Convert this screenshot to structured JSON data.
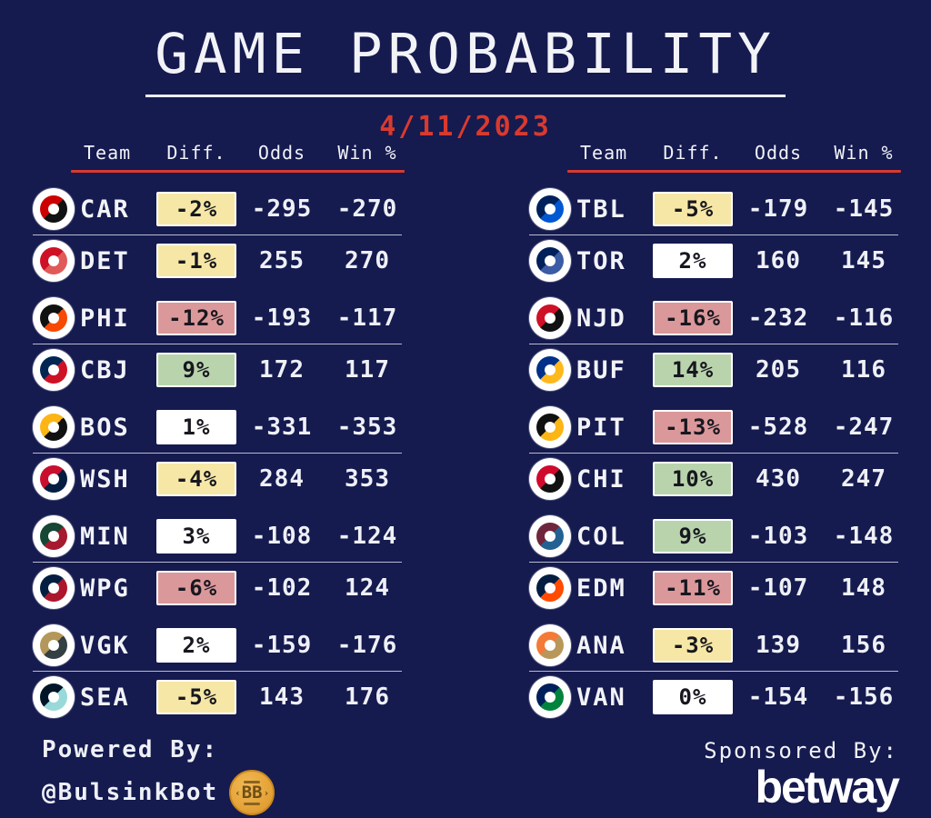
{
  "header": {
    "title": "GAME PROBABILITY",
    "date": "4/11/2023"
  },
  "table_headers": {
    "team": "Team",
    "diff": "Diff.",
    "odds": "Odds",
    "win": "Win %"
  },
  "colors": {
    "background": "#151a4f",
    "accent_red": "#d93a2e",
    "badge_yellow": "#f6e7a6",
    "badge_red": "#db989a",
    "badge_green": "#b9d4ad",
    "badge_white": "#ffffff",
    "text_white": "#f2f3f7"
  },
  "columns": [
    {
      "games": [
        {
          "rows": [
            {
              "abbr": "CAR",
              "diff": "-2%",
              "diff_level": "yellow",
              "odds": "-295",
              "win": "-270",
              "logo_colors": [
                "#cc0000",
                "#111111"
              ]
            },
            {
              "abbr": "DET",
              "diff": "-1%",
              "diff_level": "yellow",
              "odds": "255",
              "win": "270",
              "logo_colors": [
                "#ce1126",
                "#e05a5a"
              ]
            }
          ]
        },
        {
          "rows": [
            {
              "abbr": "PHI",
              "diff": "-12%",
              "diff_level": "red",
              "odds": "-193",
              "win": "-117",
              "logo_colors": [
                "#111111",
                "#f74902"
              ]
            },
            {
              "abbr": "CBJ",
              "diff": "9%",
              "diff_level": "green",
              "odds": "172",
              "win": "117",
              "logo_colors": [
                "#002654",
                "#ce1126"
              ]
            }
          ]
        },
        {
          "rows": [
            {
              "abbr": "BOS",
              "diff": "1%",
              "diff_level": "white",
              "odds": "-331",
              "win": "-353",
              "logo_colors": [
                "#fcb514",
                "#111111"
              ]
            },
            {
              "abbr": "WSH",
              "diff": "-4%",
              "diff_level": "yellow",
              "odds": "284",
              "win": "353",
              "logo_colors": [
                "#c8102e",
                "#041e42"
              ]
            }
          ]
        },
        {
          "rows": [
            {
              "abbr": "MIN",
              "diff": "3%",
              "diff_level": "white",
              "odds": "-108",
              "win": "-124",
              "logo_colors": [
                "#154734",
                "#a6192e"
              ]
            },
            {
              "abbr": "WPG",
              "diff": "-6%",
              "diff_level": "red",
              "odds": "-102",
              "win": "124",
              "logo_colors": [
                "#041e42",
                "#ac162c"
              ]
            }
          ]
        },
        {
          "rows": [
            {
              "abbr": "VGK",
              "diff": "2%",
              "diff_level": "white",
              "odds": "-159",
              "win": "-176",
              "logo_colors": [
                "#b4975a",
                "#333f42"
              ]
            },
            {
              "abbr": "SEA",
              "diff": "-5%",
              "diff_level": "yellow",
              "odds": "143",
              "win": "176",
              "logo_colors": [
                "#001628",
                "#99d9d9"
              ]
            }
          ]
        }
      ]
    },
    {
      "games": [
        {
          "rows": [
            {
              "abbr": "TBL",
              "diff": "-5%",
              "diff_level": "yellow",
              "odds": "-179",
              "win": "-145",
              "logo_colors": [
                "#00205b",
                "#0057d2"
              ]
            },
            {
              "abbr": "TOR",
              "diff": "2%",
              "diff_level": "white",
              "odds": "160",
              "win": "145",
              "logo_colors": [
                "#00205b",
                "#3b5ba5"
              ]
            }
          ]
        },
        {
          "rows": [
            {
              "abbr": "NJD",
              "diff": "-16%",
              "diff_level": "red",
              "odds": "-232",
              "win": "-116",
              "logo_colors": [
                "#ce1126",
                "#111111"
              ]
            },
            {
              "abbr": "BUF",
              "diff": "14%",
              "diff_level": "green",
              "odds": "205",
              "win": "116",
              "logo_colors": [
                "#003087",
                "#ffb81c"
              ]
            }
          ]
        },
        {
          "rows": [
            {
              "abbr": "PIT",
              "diff": "-13%",
              "diff_level": "red",
              "odds": "-528",
              "win": "-247",
              "logo_colors": [
                "#111111",
                "#fcb514"
              ]
            },
            {
              "abbr": "CHI",
              "diff": "10%",
              "diff_level": "green",
              "odds": "430",
              "win": "247",
              "logo_colors": [
                "#cf0a2c",
                "#111111"
              ]
            }
          ]
        },
        {
          "rows": [
            {
              "abbr": "COL",
              "diff": "9%",
              "diff_level": "green",
              "odds": "-103",
              "win": "-148",
              "logo_colors": [
                "#6f263d",
                "#236192"
              ]
            },
            {
              "abbr": "EDM",
              "diff": "-11%",
              "diff_level": "red",
              "odds": "-107",
              "win": "148",
              "logo_colors": [
                "#041e42",
                "#ff4c00"
              ]
            }
          ]
        },
        {
          "rows": [
            {
              "abbr": "ANA",
              "diff": "-3%",
              "diff_level": "yellow",
              "odds": "139",
              "win": "156",
              "logo_colors": [
                "#f47a38",
                "#b9975b"
              ]
            },
            {
              "abbr": "VAN",
              "diff": "0%",
              "diff_level": "white",
              "odds": "-154",
              "win": "-156",
              "logo_colors": [
                "#00205b",
                "#00843d"
              ]
            }
          ]
        }
      ]
    }
  ],
  "footer": {
    "powered_label": "Powered By:",
    "powered_handle": "@BulsinkBot",
    "coin_label": "BB",
    "sponsored_label": "Sponsored By:",
    "sponsor_name": "betway"
  },
  "chart_data": [
    {
      "type": "table",
      "title": "Game Probability 4/11/2023 (left table)",
      "columns": [
        "Team",
        "Diff.",
        "Odds",
        "Win %"
      ],
      "rows": [
        [
          "CAR",
          "-2%",
          -295,
          -270
        ],
        [
          "DET",
          "-1%",
          255,
          270
        ],
        [
          "PHI",
          "-12%",
          -193,
          -117
        ],
        [
          "CBJ",
          "9%",
          172,
          117
        ],
        [
          "BOS",
          "1%",
          -331,
          -353
        ],
        [
          "WSH",
          "-4%",
          284,
          353
        ],
        [
          "MIN",
          "3%",
          -108,
          -124
        ],
        [
          "WPG",
          "-6%",
          -102,
          124
        ],
        [
          "VGK",
          "2%",
          -159,
          -176
        ],
        [
          "SEA",
          "-5%",
          143,
          176
        ]
      ]
    },
    {
      "type": "table",
      "title": "Game Probability 4/11/2023 (right table)",
      "columns": [
        "Team",
        "Diff.",
        "Odds",
        "Win %"
      ],
      "rows": [
        [
          "TBL",
          "-5%",
          -179,
          -145
        ],
        [
          "TOR",
          "2%",
          160,
          145
        ],
        [
          "NJD",
          "-16%",
          -232,
          -116
        ],
        [
          "BUF",
          "14%",
          205,
          116
        ],
        [
          "PIT",
          "-13%",
          -528,
          -247
        ],
        [
          "CHI",
          "10%",
          430,
          247
        ],
        [
          "COL",
          "9%",
          -103,
          -148
        ],
        [
          "EDM",
          "-11%",
          -107,
          148
        ],
        [
          "ANA",
          "-3%",
          139,
          156
        ],
        [
          "VAN",
          "0%",
          -154,
          -156
        ]
      ]
    }
  ]
}
